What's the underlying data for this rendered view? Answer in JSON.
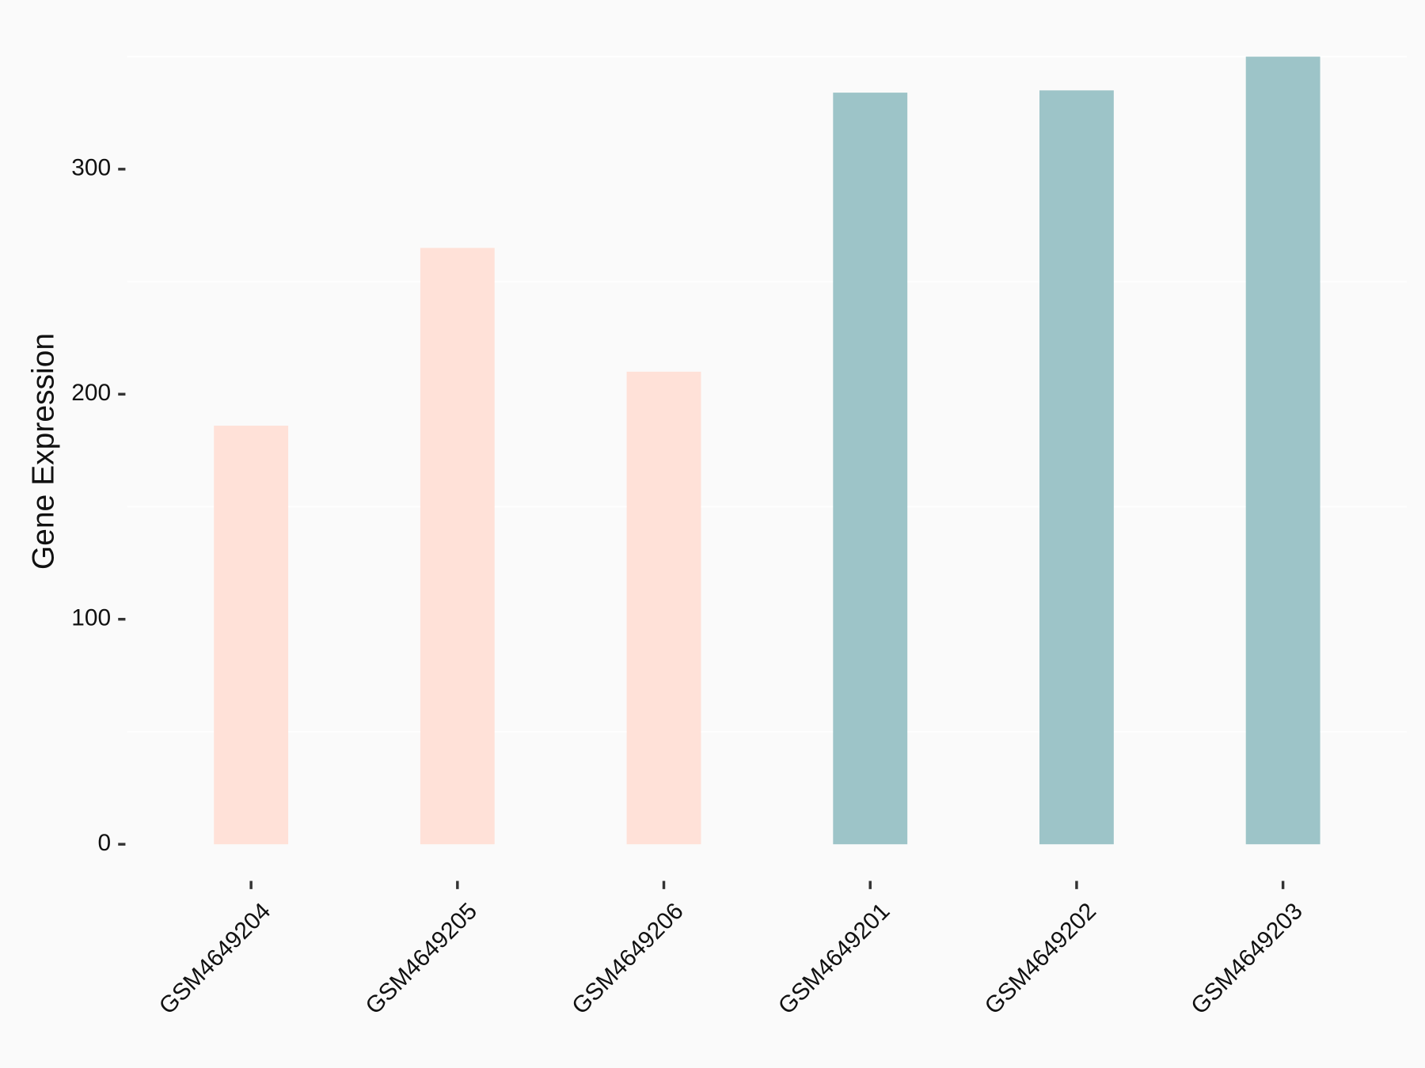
{
  "chart_data": {
    "type": "bar",
    "ylabel": "Gene Expression",
    "categories": [
      "GSM4649204",
      "GSM4649205",
      "GSM4649206",
      "GSM4649201",
      "GSM4649202",
      "GSM4649203"
    ],
    "values": [
      186,
      265,
      210,
      334,
      335,
      350
    ],
    "colors": [
      "#ffe1d8",
      "#ffe1d8",
      "#ffe1d8",
      "#9dc4c8",
      "#9dc4c8",
      "#9dc4c8"
    ],
    "ylim": [
      -17.5,
      367.5
    ],
    "yticks": [
      0,
      100,
      200,
      300
    ],
    "minor_grid": [
      50,
      150,
      250,
      350
    ]
  }
}
